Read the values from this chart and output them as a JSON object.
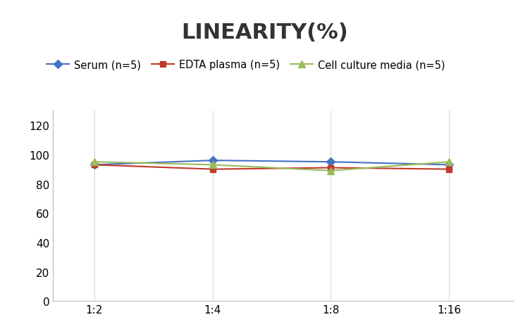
{
  "title": "LINEARITY(%)",
  "x_labels": [
    "1:2",
    "1:4",
    "1:8",
    "1:16"
  ],
  "x_positions": [
    0,
    1,
    2,
    3
  ],
  "series": [
    {
      "label": "Serum (n=5)",
      "values": [
        93,
        96,
        95,
        93
      ],
      "color": "#4472C4",
      "marker": "D",
      "linewidth": 1.5,
      "markersize": 6
    },
    {
      "label": "EDTA plasma (n=5)",
      "values": [
        93,
        90,
        91,
        90
      ],
      "color": "#C0392B",
      "marker": "s",
      "linewidth": 1.5,
      "markersize": 6
    },
    {
      "label": "Cell culture media (n=5)",
      "values": [
        95,
        93,
        89,
        95
      ],
      "color": "#9BBB59",
      "marker": "^",
      "linewidth": 1.5,
      "markersize": 7
    }
  ],
  "ylim": [
    0,
    130
  ],
  "yticks": [
    0,
    20,
    40,
    60,
    80,
    100,
    120
  ],
  "grid_color": "#D9D9D9",
  "background_color": "#FFFFFF",
  "title_fontsize": 22,
  "title_fontweight": "bold",
  "legend_fontsize": 10.5,
  "tick_fontsize": 11,
  "fig_width": 7.52,
  "fig_height": 4.52,
  "fig_dpi": 100
}
